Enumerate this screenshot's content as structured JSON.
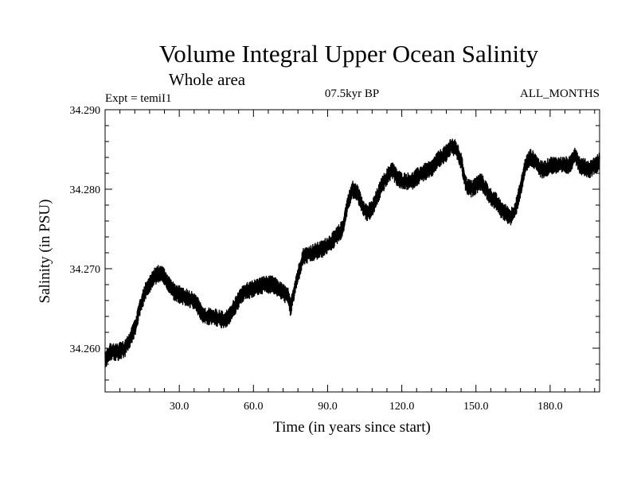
{
  "chart_data": {
    "type": "line",
    "title": "Volume Integral Upper Ocean Salinity",
    "subtitle": "Whole area",
    "annotations": {
      "left": "Expt = temiI1",
      "center": "07.5kyr BP",
      "right": "ALL_MONTHS"
    },
    "xlabel": "Time (in years since start)",
    "ylabel": "Salinity (in PSU)",
    "xlim": [
      0,
      200
    ],
    "ylim": [
      34.2545,
      34.29
    ],
    "x_ticks": [
      30,
      60,
      90,
      120,
      150,
      180
    ],
    "x_tick_labels": [
      "30.0",
      "60.0",
      "90.0",
      "120.0",
      "150.0",
      "180.0"
    ],
    "y_ticks": [
      34.26,
      34.27,
      34.28,
      34.29
    ],
    "y_tick_labels": [
      "34.260",
      "34.270",
      "34.280",
      "34.290"
    ],
    "x_minor_step": 6,
    "y_minor_step": 0.002,
    "grid": false,
    "legend": "none",
    "series": [
      {
        "name": "Salinity",
        "color": "#000000",
        "samples_per_year": 12,
        "noise_amplitude": 0.0011,
        "x": [
          0,
          2,
          5,
          8,
          10,
          12,
          14,
          16,
          18,
          20,
          22,
          24,
          26,
          28,
          32,
          36,
          38,
          40,
          44,
          48,
          50,
          52,
          54,
          56,
          60,
          64,
          68,
          72,
          74,
          75,
          77,
          80,
          84,
          88,
          92,
          96,
          98,
          100,
          102,
          104,
          106,
          108,
          110,
          112,
          114,
          116,
          118,
          120,
          124,
          128,
          132,
          134,
          136,
          138,
          140,
          142,
          144,
          146,
          148,
          150,
          152,
          154,
          156,
          158,
          160,
          162,
          164,
          166,
          168,
          170,
          172,
          174,
          176,
          178,
          180,
          184,
          188,
          190,
          192,
          196,
          200
        ],
        "values": [
          34.2585,
          34.2595,
          34.2595,
          34.26,
          34.261,
          34.2625,
          34.265,
          34.267,
          34.268,
          34.269,
          34.2695,
          34.269,
          34.268,
          34.267,
          34.2665,
          34.266,
          34.265,
          34.264,
          34.264,
          34.2635,
          34.264,
          34.265,
          34.266,
          34.267,
          34.2675,
          34.268,
          34.268,
          34.267,
          34.2665,
          34.265,
          34.268,
          34.2715,
          34.272,
          34.2725,
          34.2735,
          34.275,
          34.278,
          34.28,
          34.2795,
          34.278,
          34.277,
          34.2775,
          34.279,
          34.2805,
          34.2815,
          34.2825,
          34.2815,
          34.281,
          34.281,
          34.282,
          34.2825,
          34.2835,
          34.284,
          34.2845,
          34.2855,
          34.285,
          34.2835,
          34.2805,
          34.28,
          34.2805,
          34.281,
          34.28,
          34.279,
          34.2785,
          34.2775,
          34.277,
          34.2765,
          34.2775,
          34.28,
          34.283,
          34.284,
          34.2835,
          34.2825,
          34.2825,
          34.283,
          34.283,
          34.283,
          34.2845,
          34.283,
          34.2825,
          34.2835
        ]
      }
    ]
  }
}
